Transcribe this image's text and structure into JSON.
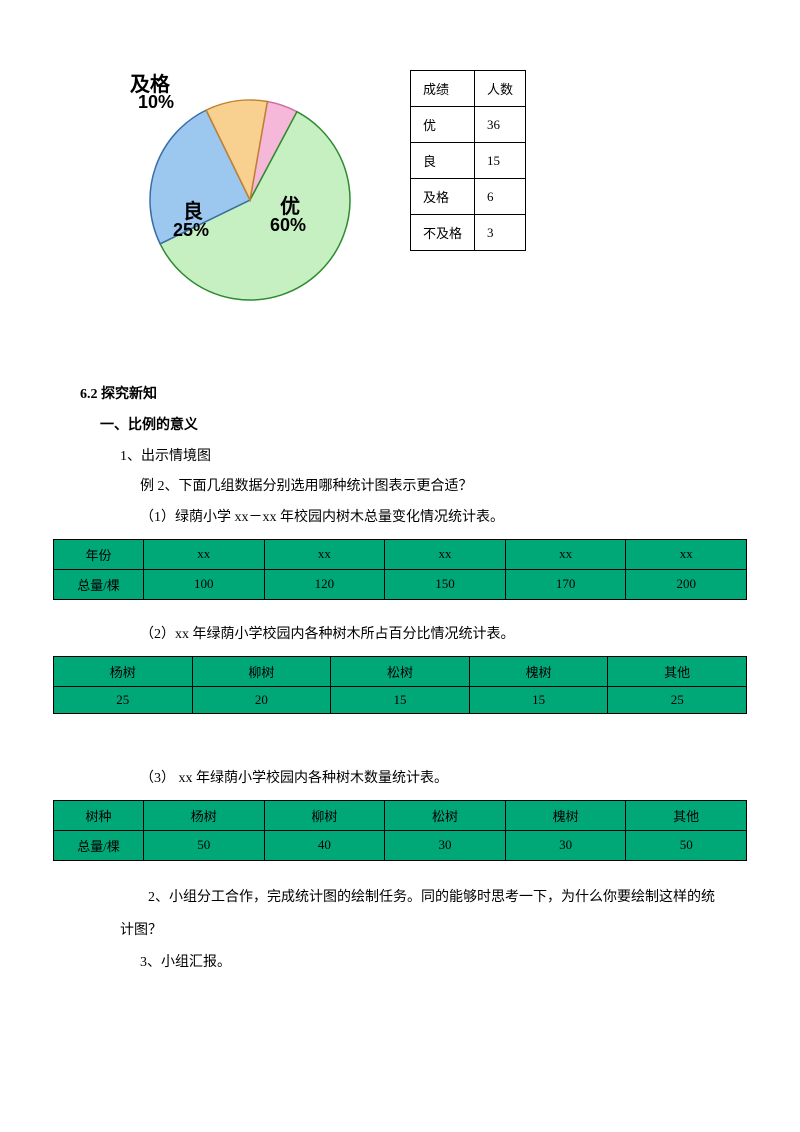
{
  "pie": {
    "slices": [
      {
        "label": "优",
        "pct": "60%",
        "value": 60,
        "color": "#c6f0c2",
        "stroke": "#2d8a2d"
      },
      {
        "label": "良",
        "pct": "25%",
        "value": 25,
        "color": "#9cc8f0",
        "stroke": "#3a6da8"
      },
      {
        "label": "及格",
        "pct": "10%",
        "value": 10,
        "color": "#f8d090",
        "stroke": "#c08030"
      },
      {
        "label": "不及格",
        "pct": "",
        "value": 5,
        "color": "#f5b8d8",
        "stroke": "#d070a0"
      }
    ],
    "label_jige": "及格",
    "label_jige_pct": "10%",
    "label_liang": "良",
    "label_liang_pct": "25%",
    "label_you": "优",
    "label_you_pct": "60%"
  },
  "score_table": {
    "headers": [
      "成绩",
      "人数"
    ],
    "rows": [
      [
        "优",
        "36"
      ],
      [
        "良",
        "15"
      ],
      [
        "及格",
        "6"
      ],
      [
        "不及格",
        "3"
      ]
    ]
  },
  "headings": {
    "h62": "6.2 探究新知",
    "h1": "一、比例的意义",
    "p1": "1、出示情境图",
    "p2": "例 2、下面几组数据分别选用哪种统计图表示更合适？",
    "p3": "（1）绿荫小学 xx－xx 年校园内树木总量变化情况统计表。",
    "p4": "（2）xx 年绿荫小学校园内各种树木所占百分比情况统计表。",
    "p5": "（3） xx 年绿荫小学校园内各种树木数量统计表。",
    "p6": "2、小组分工合作，完成统计图的绘制任务。同的能够时思考一下，为什么你要绘制这样的统计图？",
    "p7": "3、小组汇报。"
  },
  "table1": {
    "row1": [
      "年份",
      "xx",
      "xx",
      "xx",
      "xx",
      "xx"
    ],
    "row2": [
      "总量/棵",
      "100",
      "120",
      "150",
      "170",
      "200"
    ]
  },
  "table2": {
    "row1": [
      "杨树",
      "柳树",
      "松树",
      "槐树",
      "其他"
    ],
    "row2": [
      "25",
      "20",
      "15",
      "15",
      "25"
    ]
  },
  "table3": {
    "row1": [
      "树种",
      "杨树",
      "柳树",
      "松树",
      "槐树",
      "其他"
    ],
    "row2": [
      "总量/棵",
      "50",
      "40",
      "30",
      "30",
      "50"
    ]
  },
  "colors": {
    "green_table_bg": "#00a878",
    "table_border": "#000000"
  }
}
